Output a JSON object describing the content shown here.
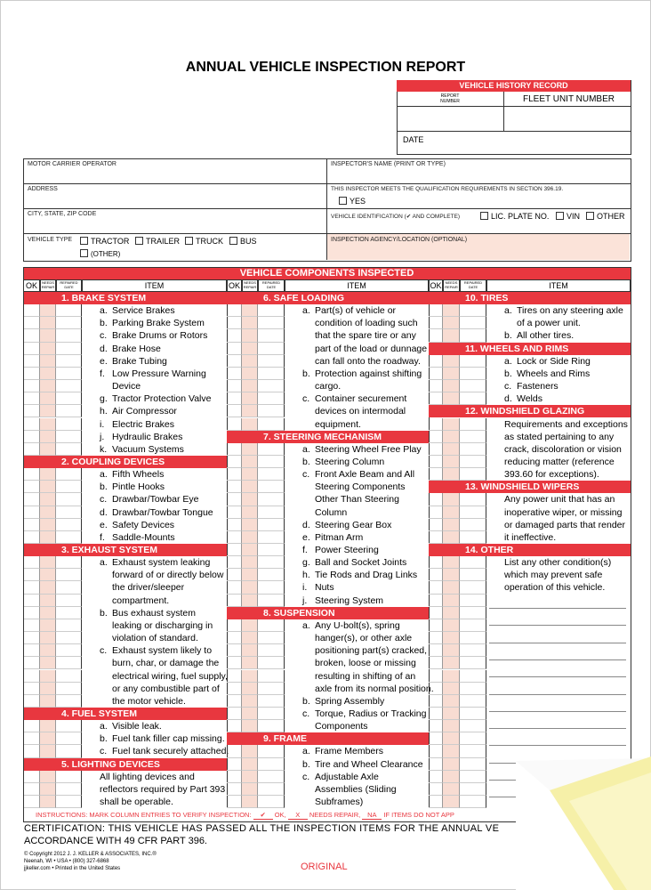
{
  "title": "ANNUAL VEHICLE INSPECTION REPORT",
  "history": {
    "title": "VEHICLE HISTORY RECORD",
    "report_number": "REPORT NUMBER",
    "fleet_unit": "FLEET UNIT NUMBER",
    "date": "DATE"
  },
  "info": {
    "carrier": "MOTOR CARRIER OPERATOR",
    "address": "ADDRESS",
    "city": "CITY, STATE, ZIP CODE",
    "vehicle_type": "VEHICLE TYPE",
    "vehicle_options": [
      "TRACTOR",
      "TRAILER",
      "TRUCK",
      "BUS",
      "(OTHER)"
    ],
    "inspector": "INSPECTOR'S NAME (PRINT OR TYPE)",
    "qualification": "THIS INSPECTOR MEETS THE QUALIFICATION REQUIREMENTS IN SECTION 396.19.",
    "yes": "YES",
    "identification": "VEHICLE IDENTIFICATION (✔ AND COMPLETE)",
    "id_options": [
      "LIC. PLATE NO.",
      "VIN",
      "OTHER"
    ],
    "agency": "INSPECTION AGENCY/LOCATION (OPTIONAL)"
  },
  "components": {
    "title": "VEHICLE COMPONENTS INSPECTED",
    "headers": [
      "OK",
      "NEEDS REPAIR",
      "REPAIRED DATE",
      "ITEM"
    ],
    "columns": [
      [
        {
          "section": "1. BRAKE SYSTEM"
        },
        {
          "letter": "a.",
          "lines": [
            "Service Brakes"
          ]
        },
        {
          "letter": "b.",
          "lines": [
            "Parking Brake System"
          ]
        },
        {
          "letter": "c.",
          "lines": [
            "Brake Drums or Rotors"
          ]
        },
        {
          "letter": "d.",
          "lines": [
            "Brake Hose"
          ]
        },
        {
          "letter": "e.",
          "lines": [
            "Brake Tubing"
          ]
        },
        {
          "letter": "f.",
          "lines": [
            "Low Pressure Warning",
            "Device"
          ]
        },
        {
          "letter": "g.",
          "lines": [
            "Tractor Protection Valve"
          ]
        },
        {
          "letter": "h.",
          "lines": [
            "Air Compressor"
          ]
        },
        {
          "letter": "i.",
          "lines": [
            "Electric Brakes"
          ]
        },
        {
          "letter": "j.",
          "lines": [
            "Hydraulic Brakes"
          ]
        },
        {
          "letter": "k.",
          "lines": [
            "Vacuum Systems"
          ]
        },
        {
          "section": "2. COUPLING DEVICES"
        },
        {
          "letter": "a.",
          "lines": [
            "Fifth Wheels"
          ]
        },
        {
          "letter": "b.",
          "lines": [
            "Pintle Hooks"
          ]
        },
        {
          "letter": "c.",
          "lines": [
            "Drawbar/Towbar Eye"
          ]
        },
        {
          "letter": "d.",
          "lines": [
            "Drawbar/Towbar Tongue"
          ]
        },
        {
          "letter": "e.",
          "lines": [
            "Safety Devices"
          ]
        },
        {
          "letter": "f.",
          "lines": [
            "Saddle-Mounts"
          ]
        },
        {
          "section": "3. EXHAUST SYSTEM"
        },
        {
          "letter": "a.",
          "lines": [
            "Exhaust system leaking",
            "forward of or directly below",
            "the driver/sleeper",
            "compartment."
          ]
        },
        {
          "letter": "b.",
          "lines": [
            "Bus exhaust system",
            "leaking or discharging in",
            "violation of standard."
          ]
        },
        {
          "letter": "c.",
          "lines": [
            "Exhaust system likely to",
            "burn, char, or damage the",
            "electrical wiring, fuel supply,",
            "or any combustible part of",
            "the motor vehicle."
          ]
        },
        {
          "section": "4. FUEL SYSTEM"
        },
        {
          "letter": "a.",
          "lines": [
            "Visible leak."
          ]
        },
        {
          "letter": "b.",
          "lines": [
            "Fuel tank filler cap missing."
          ]
        },
        {
          "letter": "c.",
          "lines": [
            "Fuel tank securely attached."
          ]
        },
        {
          "section": "5. LIGHTING DEVICES"
        },
        {
          "lines": [
            "All lighting devices and",
            "reflectors required by Part 393",
            "shall be operable."
          ]
        }
      ],
      [
        {
          "section": "6. SAFE LOADING"
        },
        {
          "letter": "a.",
          "lines": [
            "Part(s) of vehicle or",
            "condition of loading such",
            "that the spare tire or any",
            "part of the load or dunnage",
            "can fall onto the roadway."
          ]
        },
        {
          "letter": "b.",
          "lines": [
            "Protection against shifting",
            "cargo."
          ]
        },
        {
          "letter": "c.",
          "lines": [
            "Container securement",
            "devices on intermodal",
            "equipment."
          ]
        },
        {
          "section": "7. STEERING MECHANISM"
        },
        {
          "letter": "a.",
          "lines": [
            "Steering Wheel Free Play"
          ]
        },
        {
          "letter": "b.",
          "lines": [
            "Steering Column"
          ]
        },
        {
          "letter": "c.",
          "lines": [
            "Front Axle Beam and All",
            "Steering Components",
            "Other Than Steering",
            "Column"
          ]
        },
        {
          "letter": "d.",
          "lines": [
            "Steering Gear Box"
          ]
        },
        {
          "letter": "e.",
          "lines": [
            "Pitman Arm"
          ]
        },
        {
          "letter": "f.",
          "lines": [
            "Power Steering"
          ]
        },
        {
          "letter": "g.",
          "lines": [
            "Ball and Socket Joints"
          ]
        },
        {
          "letter": "h.",
          "lines": [
            "Tie Rods and Drag Links"
          ]
        },
        {
          "letter": "i.",
          "lines": [
            "Nuts"
          ]
        },
        {
          "letter": "j.",
          "lines": [
            "Steering System"
          ]
        },
        {
          "section": "8. SUSPENSION"
        },
        {
          "letter": "a.",
          "lines": [
            "Any U-bolt(s), spring",
            "hanger(s), or other axle",
            "positioning part(s) cracked,",
            "broken, loose or missing",
            "resulting in shifting of an",
            "axle from its normal position."
          ]
        },
        {
          "letter": "b.",
          "lines": [
            "Spring Assembly"
          ]
        },
        {
          "letter": "c.",
          "lines": [
            "Torque, Radius or Tracking",
            "Components"
          ]
        },
        {
          "section": "9. FRAME"
        },
        {
          "letter": "a.",
          "lines": [
            "Frame Members"
          ]
        },
        {
          "letter": "b.",
          "lines": [
            "Tire and Wheel Clearance"
          ]
        },
        {
          "letter": "c.",
          "lines": [
            "Adjustable Axle",
            "Assemblies (Sliding",
            "Subframes)"
          ]
        }
      ],
      [
        {
          "section": "10. TIRES"
        },
        {
          "letter": "a.",
          "lines": [
            "Tires on any steering axle",
            "of a power unit."
          ]
        },
        {
          "letter": "b.",
          "lines": [
            "All other tires."
          ]
        },
        {
          "section": "11. WHEELS AND RIMS"
        },
        {
          "letter": "a.",
          "lines": [
            "Lock or Side Ring"
          ]
        },
        {
          "letter": "b.",
          "lines": [
            "Wheels and Rims"
          ]
        },
        {
          "letter": "c.",
          "lines": [
            "Fasteners"
          ]
        },
        {
          "letter": "d.",
          "lines": [
            "Welds"
          ]
        },
        {
          "section": "12. WINDSHIELD GLAZING"
        },
        {
          "lines": [
            "Requirements and exceptions",
            "as stated pertaining to any",
            "crack, discoloration or vision",
            "reducing matter (reference",
            "393.60 for exceptions)."
          ]
        },
        {
          "section": "13. WINDSHIELD WIPERS"
        },
        {
          "lines": [
            "Any power unit that has an",
            "inoperative wiper, or missing",
            "or damaged parts that render",
            "it ineffective."
          ]
        },
        {
          "section": "14. OTHER"
        },
        {
          "lines": [
            "List any other condition(s)",
            "which may prevent safe",
            "operation of this vehicle."
          ]
        }
      ]
    ]
  },
  "instructions": {
    "lead": "INSTRUCTIONS: MARK COLUMN ENTRIES TO VERIFY INSPECTION:",
    "ok_mark": "✔",
    "ok": "OK,",
    "repair_mark": "X",
    "repair": "NEEDS REPAIR,",
    "na_mark": "NA",
    "na": "IF ITEMS DO NOT APP"
  },
  "certification": [
    "CERTIFICATION: THIS VEHICLE HAS PASSED ALL THE INSPECTION ITEMS FOR THE ANNUAL VE",
    "ACCORDANCE WITH 49 CFR PART 396."
  ],
  "footer": {
    "copyright": [
      "© Copyright 2012 J. J. KELLER & ASSOCIATES, INC.®",
      "Neenah, WI • USA • (800) 327-6868",
      "jjkeller.com • Printed in the United States"
    ],
    "copy": "ORIGINAL"
  }
}
